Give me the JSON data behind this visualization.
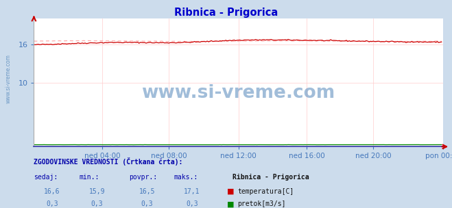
{
  "title": "Ribnica - Prigorica",
  "title_color": "#0000cc",
  "bg_color": "#ccdcec",
  "plot_bg_color": "#ffffff",
  "watermark_text": "www.si-vreme.com",
  "watermark_color": "#5588bb",
  "xlabel_ticks": [
    "ned 04:00",
    "ned 08:00",
    "ned 12:00",
    "ned 16:00",
    "ned 20:00",
    "pon 00:00"
  ],
  "xlabel_ticks_pos": [
    0.1667,
    0.3333,
    0.5,
    0.6667,
    0.8333,
    1.0
  ],
  "ytick_labels": [
    "16",
    "10"
  ],
  "ytick_vals": [
    16,
    10
  ],
  "ylim": [
    0,
    20
  ],
  "xlim_n": 288,
  "temp_color": "#cc0000",
  "temp_hist_color": "#ffaaaa",
  "flow_color": "#008800",
  "grid_color": "#ffcccc",
  "temp_min": 15.9,
  "temp_max": 17.1,
  "temp_avg": 16.5,
  "temp_now": 16.6,
  "flow_min": 0.3,
  "flow_max": 0.3,
  "flow_avg": 0.3,
  "flow_now": 0.3,
  "bottom_title": "ZGODOVINSKE VREDNOSTI (Črtkana črta):",
  "col_headers": [
    "sedaj:",
    "min.:",
    "povpr.:",
    "maks.:"
  ],
  "temp_vals_str": [
    "16,6",
    "15,9",
    "16,5",
    "17,1"
  ],
  "flow_vals_str": [
    "0,3",
    "0,3",
    "0,3",
    "0,3"
  ],
  "legend_station": "Ribnica - Prigorica",
  "legend_temp_label": "temperatura[C]",
  "legend_flow_label": "pretok[m3/s]",
  "legend_temp_color": "#cc0000",
  "legend_flow_color": "#008800"
}
